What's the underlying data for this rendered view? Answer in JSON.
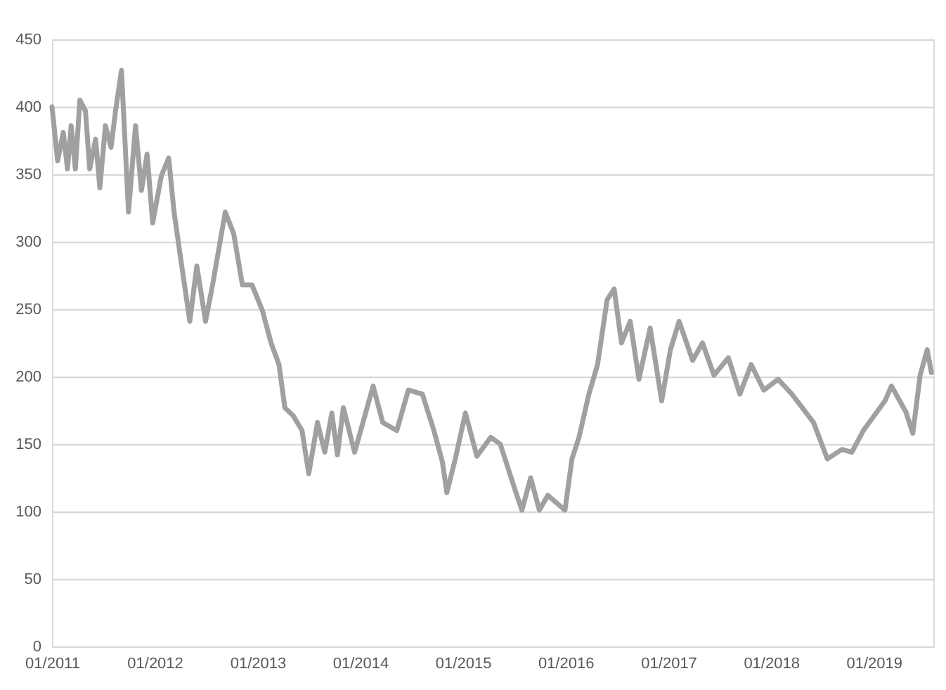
{
  "chart_data": {
    "type": "line",
    "x": [
      "2011-01-01",
      "2011-01-21",
      "2011-02-10",
      "2011-02-25",
      "2011-03-10",
      "2011-03-25",
      "2011-04-10",
      "2011-04-30",
      "2011-05-15",
      "2011-06-05",
      "2011-06-20",
      "2011-07-10",
      "2011-07-30",
      "2011-08-15",
      "2011-09-05",
      "2011-09-30",
      "2011-10-25",
      "2011-11-15",
      "2011-12-05",
      "2011-12-25",
      "2012-01-25",
      "2012-02-20",
      "2012-03-10",
      "2012-04-05",
      "2012-05-05",
      "2012-05-30",
      "2012-06-30",
      "2012-07-25",
      "2012-09-08",
      "2012-10-08",
      "2012-11-08",
      "2012-12-12",
      "2013-01-18",
      "2013-02-18",
      "2013-03-18",
      "2013-04-08",
      "2013-05-08",
      "2013-06-08",
      "2013-07-02",
      "2013-08-02",
      "2013-08-28",
      "2013-09-22",
      "2013-10-12",
      "2013-11-02",
      "2013-12-12",
      "2014-02-16",
      "2014-03-22",
      "2014-05-11",
      "2014-06-21",
      "2014-08-10",
      "2014-09-20",
      "2014-10-20",
      "2014-11-05",
      "2014-12-05",
      "2015-01-10",
      "2015-02-20",
      "2015-04-10",
      "2015-05-14",
      "2015-07-04",
      "2015-07-30",
      "2015-08-30",
      "2015-09-30",
      "2015-10-30",
      "2015-12-30",
      "2016-01-24",
      "2016-02-18",
      "2016-03-24",
      "2016-04-24",
      "2016-05-28",
      "2016-06-22",
      "2016-07-18",
      "2016-08-18",
      "2016-09-18",
      "2016-10-28",
      "2016-12-08",
      "2017-01-08",
      "2017-02-08",
      "2017-03-28",
      "2017-05-02",
      "2017-06-12",
      "2017-08-02",
      "2017-09-12",
      "2017-10-22",
      "2017-12-06",
      "2018-01-26",
      "2018-03-16",
      "2018-06-01",
      "2018-07-20",
      "2018-09-10",
      "2018-10-15",
      "2018-11-25",
      "2019-02-10",
      "2019-03-05",
      "2019-04-25",
      "2019-05-20",
      "2019-06-15",
      "2019-07-10",
      "2019-07-25"
    ],
    "series": [
      {
        "color": "#a0a0a0",
        "values": [
          400,
          360,
          381,
          354,
          386,
          354,
          405,
          397,
          354,
          376,
          340,
          386,
          370,
          397,
          427,
          322,
          386,
          338,
          365,
          314,
          349,
          362,
          322,
          284,
          241,
          282,
          241,
          268,
          322,
          306,
          268,
          268,
          249,
          225,
          209,
          177,
          171,
          160,
          128,
          166,
          144,
          173,
          142,
          177,
          144,
          193,
          166,
          160,
          190,
          187,
          160,
          137,
          114,
          139,
          173,
          141,
          155,
          150,
          117,
          101,
          125,
          101,
          112,
          101,
          139,
          155,
          187,
          209,
          257,
          265,
          225,
          241,
          198,
          236,
          182,
          220,
          241,
          212,
          225,
          201,
          214,
          187,
          209,
          190,
          198,
          187,
          166,
          139,
          146,
          144,
          160,
          182,
          193,
          174,
          158,
          201,
          220,
          203
        ]
      }
    ],
    "xlim": [
      "2011-01-01",
      "2019-08-01"
    ],
    "xticks": [
      {
        "value": "2011-01-01",
        "label": "01/2011"
      },
      {
        "value": "2012-01-01",
        "label": "01/2012"
      },
      {
        "value": "2013-01-01",
        "label": "01/2013"
      },
      {
        "value": "2014-01-01",
        "label": "01/2014"
      },
      {
        "value": "2015-01-01",
        "label": "01/2015"
      },
      {
        "value": "2016-01-01",
        "label": "01/2016"
      },
      {
        "value": "2017-01-01",
        "label": "01/2017"
      },
      {
        "value": "2018-01-01",
        "label": "01/2018"
      },
      {
        "value": "2019-01-01",
        "label": "01/2019"
      }
    ],
    "ylim": [
      0,
      450
    ],
    "yticks": [
      0,
      50,
      100,
      150,
      200,
      250,
      300,
      350,
      400,
      450
    ],
    "grid": "y",
    "marker": "none",
    "line_style": "solid",
    "legend": false
  }
}
